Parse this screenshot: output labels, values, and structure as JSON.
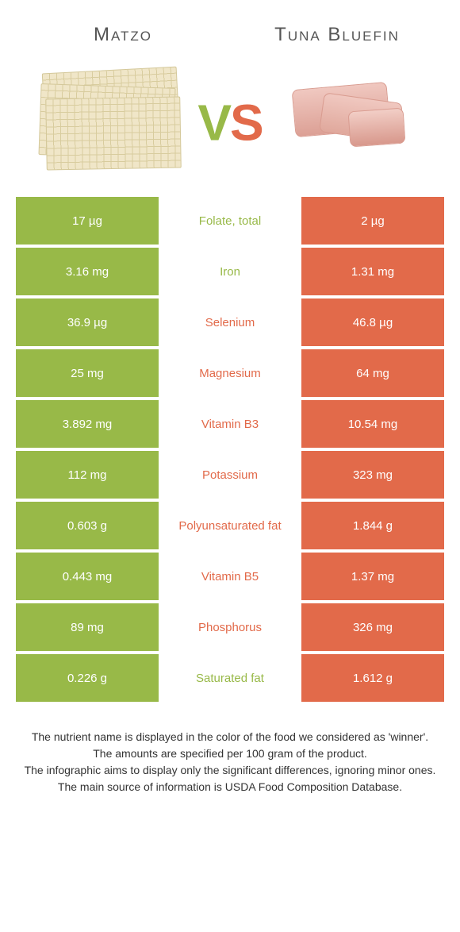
{
  "colors": {
    "leftBg": "#98b948",
    "rightBg": "#e26a4a",
    "leftText": "#98b948",
    "rightText": "#e26a4a",
    "white": "#ffffff"
  },
  "header": {
    "leftTitle": "Matzo",
    "rightTitle": "Tuna Bluefin",
    "vs_v": "V",
    "vs_s": "S"
  },
  "rows": [
    {
      "left": "17 µg",
      "label": "Folate, total",
      "right": "2 µg",
      "winner": "left"
    },
    {
      "left": "3.16 mg",
      "label": "Iron",
      "right": "1.31 mg",
      "winner": "left"
    },
    {
      "left": "36.9 µg",
      "label": "Selenium",
      "right": "46.8 µg",
      "winner": "right"
    },
    {
      "left": "25 mg",
      "label": "Magnesium",
      "right": "64 mg",
      "winner": "right"
    },
    {
      "left": "3.892 mg",
      "label": "Vitamin B3",
      "right": "10.54 mg",
      "winner": "right"
    },
    {
      "left": "112 mg",
      "label": "Potassium",
      "right": "323 mg",
      "winner": "right"
    },
    {
      "left": "0.603 g",
      "label": "Polyunsaturated fat",
      "right": "1.844 g",
      "winner": "right"
    },
    {
      "left": "0.443 mg",
      "label": "Vitamin B5",
      "right": "1.37 mg",
      "winner": "right"
    },
    {
      "left": "89 mg",
      "label": "Phosphorus",
      "right": "326 mg",
      "winner": "right"
    },
    {
      "left": "0.226 g",
      "label": "Saturated fat",
      "right": "1.612 g",
      "winner": "left"
    }
  ],
  "footnotes": [
    "The nutrient name is displayed in the color of the food we considered as 'winner'.",
    "The amounts are specified per 100 gram of the product.",
    "The infographic aims to display only the significant differences, ignoring minor ones.",
    "The main source of information is USDA Food Composition Database."
  ]
}
